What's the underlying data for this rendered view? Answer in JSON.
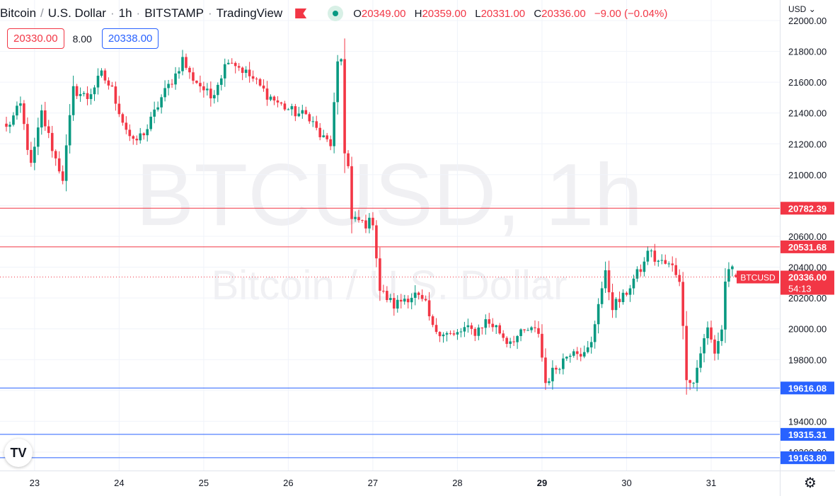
{
  "header": {
    "symbol": "Bitcoin",
    "quote": "U.S. Dollar",
    "interval": "1h",
    "exchange": "BITSTAMP",
    "provider": "TradingView",
    "ohlc": [
      {
        "label": "O",
        "value": "20349.00"
      },
      {
        "label": "H",
        "value": "20359.00"
      },
      {
        "label": "L",
        "value": "20331.00"
      },
      {
        "label": "C",
        "value": "20336.00"
      }
    ],
    "change": "−9.00 (−0.04%)"
  },
  "quotes": {
    "sell": "20330.00",
    "spread": "8.00",
    "buy": "20338.00"
  },
  "currency": "USD",
  "currency_icon": "chevron-down-icon",
  "watermark": {
    "line1": "BTCUSD, 1h",
    "line2": "Bitcoin / U.S. Dollar"
  },
  "colors": {
    "up": "#089981",
    "down": "#f23645",
    "resistance": "#f23645",
    "support": "#2962ff",
    "watermark": "#f0f0f3",
    "grid": "#f0f3fa"
  },
  "icons": {
    "logo": "tradingview-logo-icon",
    "settings": "gear-icon",
    "flag": "flag-icon",
    "status": "market-status-icon"
  },
  "logo_text": "TV",
  "chart_data": {
    "type": "candlestick",
    "title": "",
    "ylim": [
      19150,
      22050
    ],
    "y_ticks": [
      "22000.00",
      "21800.00",
      "21600.00",
      "21400.00",
      "21200.00",
      "21000.00",
      "20800.00",
      "20600.00",
      "20400.00",
      "20200.00",
      "20000.00",
      "19800.00",
      "19600.00",
      "19400.00",
      "19200.00"
    ],
    "x_ticks": [
      {
        "label": "23",
        "bar": 8,
        "bold": false
      },
      {
        "label": "24",
        "bar": 32,
        "bold": false
      },
      {
        "label": "25",
        "bar": 56,
        "bold": false
      },
      {
        "label": "26",
        "bar": 80,
        "bold": false
      },
      {
        "label": "27",
        "bar": 104,
        "bold": false
      },
      {
        "label": "28",
        "bar": 128,
        "bold": false
      },
      {
        "label": "29",
        "bar": 152,
        "bold": true
      },
      {
        "label": "30",
        "bar": 176,
        "bold": false
      },
      {
        "label": "31",
        "bar": 200,
        "bold": false
      }
    ],
    "horizontal_lines": [
      {
        "value": 20782.39,
        "label": "20782.39",
        "kind": "resistance"
      },
      {
        "value": 20531.68,
        "label": "20531.68",
        "kind": "resistance"
      },
      {
        "value": 19616.08,
        "label": "19616.08",
        "kind": "support"
      },
      {
        "value": 19315.31,
        "label": "19315.31",
        "kind": "support"
      },
      {
        "value": 19163.8,
        "label": "19163.80",
        "kind": "support"
      }
    ],
    "last_price": {
      "value": 20336.0,
      "label": "20336.00",
      "symbol": "BTCUSD",
      "countdown": "54:13"
    },
    "key_points": [
      [
        0,
        21300
      ],
      [
        4,
        21450
      ],
      [
        7,
        21050
      ],
      [
        10,
        21400
      ],
      [
        14,
        21100
      ],
      [
        16,
        20980
      ],
      [
        19,
        21550
      ],
      [
        23,
        21500
      ],
      [
        27,
        21650
      ],
      [
        30,
        21550
      ],
      [
        33,
        21350
      ],
      [
        36,
        21200
      ],
      [
        40,
        21300
      ],
      [
        44,
        21500
      ],
      [
        48,
        21650
      ],
      [
        50,
        21750
      ],
      [
        52,
        21650
      ],
      [
        55,
        21580
      ],
      [
        58,
        21500
      ],
      [
        61,
        21650
      ],
      [
        63,
        21760
      ],
      [
        66,
        21700
      ],
      [
        70,
        21620
      ],
      [
        74,
        21520
      ],
      [
        78,
        21450
      ],
      [
        82,
        21400
      ],
      [
        86,
        21380
      ],
      [
        89,
        21250
      ],
      [
        92,
        21200
      ],
      [
        94,
        21700
      ],
      [
        95,
        21750
      ],
      [
        96,
        21160
      ],
      [
        97,
        21050
      ],
      [
        98,
        20700
      ],
      [
        100,
        20700
      ],
      [
        102,
        20680
      ],
      [
        104,
        20700
      ],
      [
        106,
        20250
      ],
      [
        108,
        20200
      ],
      [
        110,
        20150
      ],
      [
        113,
        20200
      ],
      [
        116,
        20220
      ],
      [
        119,
        20150
      ],
      [
        121,
        20000
      ],
      [
        124,
        19980
      ],
      [
        127,
        19950
      ],
      [
        130,
        20000
      ],
      [
        133,
        19980
      ],
      [
        136,
        20050
      ],
      [
        139,
        20010
      ],
      [
        142,
        19920
      ],
      [
        145,
        19950
      ],
      [
        148,
        19990
      ],
      [
        151,
        19980
      ],
      [
        153,
        19650
      ],
      [
        155,
        19720
      ],
      [
        158,
        19800
      ],
      [
        161,
        19880
      ],
      [
        164,
        19830
      ],
      [
        166,
        19900
      ],
      [
        168,
        20180
      ],
      [
        170,
        20350
      ],
      [
        172,
        20150
      ],
      [
        175,
        20200
      ],
      [
        178,
        20320
      ],
      [
        181,
        20420
      ],
      [
        182,
        20520
      ],
      [
        184,
        20450
      ],
      [
        186,
        20430
      ],
      [
        189,
        20400
      ],
      [
        191,
        20330
      ],
      [
        192,
        20000
      ],
      [
        193,
        19700
      ],
      [
        195,
        19650
      ],
      [
        197,
        19850
      ],
      [
        199,
        20000
      ],
      [
        201,
        19850
      ],
      [
        203,
        20000
      ],
      [
        204,
        20300
      ],
      [
        205,
        20400
      ],
      [
        207,
        20349
      ]
    ],
    "last_bar": {
      "bar": 207,
      "o": 20349.0,
      "h": 20359.0,
      "l": 20331.0,
      "c": 20336.0
    }
  }
}
